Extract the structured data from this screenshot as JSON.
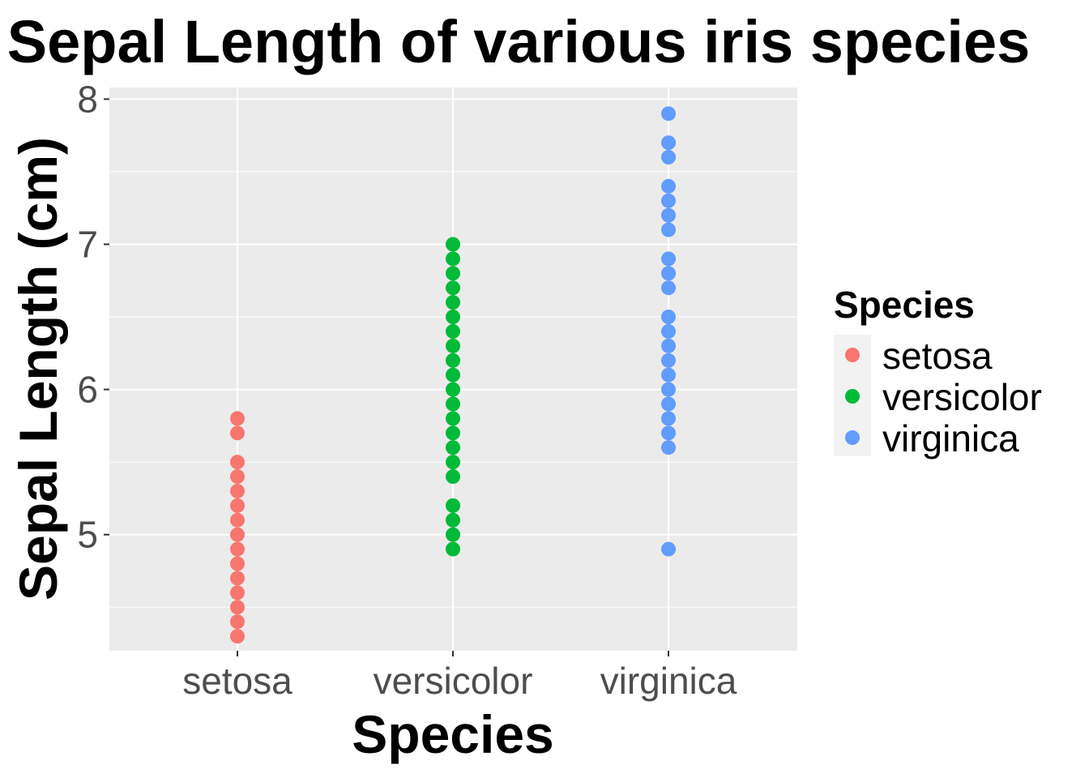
{
  "chart_data": {
    "type": "scatter",
    "title": "Sepal Length of various iris species",
    "xlabel": "Species",
    "ylabel": "Sepal Length (cm)",
    "categories": [
      "setosa",
      "versicolor",
      "virginica"
    ],
    "ylim": [
      4.2,
      8.08
    ],
    "yticks": [
      "5",
      "6",
      "7",
      "8"
    ],
    "grid": true,
    "legend": {
      "title": "Species",
      "placement": "right",
      "entries": [
        "setosa",
        "versicolor",
        "virginica"
      ]
    },
    "colors": {
      "setosa": "#F8766D",
      "versicolor": "#00BA38",
      "virginica": "#619CFF",
      "panel": "#EBEBEB",
      "grid": "#FFFFFF"
    },
    "series": [
      {
        "name": "setosa",
        "values": [
          4.3,
          4.4,
          4.5,
          4.6,
          4.7,
          4.8,
          4.9,
          5.0,
          5.1,
          5.2,
          5.3,
          5.4,
          5.5,
          5.7,
          5.8
        ]
      },
      {
        "name": "versicolor",
        "values": [
          4.9,
          5.0,
          5.1,
          5.2,
          5.4,
          5.5,
          5.6,
          5.7,
          5.8,
          5.9,
          6.0,
          6.1,
          6.2,
          6.3,
          6.4,
          6.5,
          6.6,
          6.7,
          6.8,
          6.9,
          7.0
        ]
      },
      {
        "name": "virginica",
        "values": [
          4.9,
          5.6,
          5.7,
          5.8,
          5.9,
          6.0,
          6.1,
          6.2,
          6.3,
          6.4,
          6.5,
          6.7,
          6.8,
          6.9,
          7.1,
          7.2,
          7.3,
          7.4,
          7.6,
          7.7,
          7.9
        ]
      }
    ]
  }
}
